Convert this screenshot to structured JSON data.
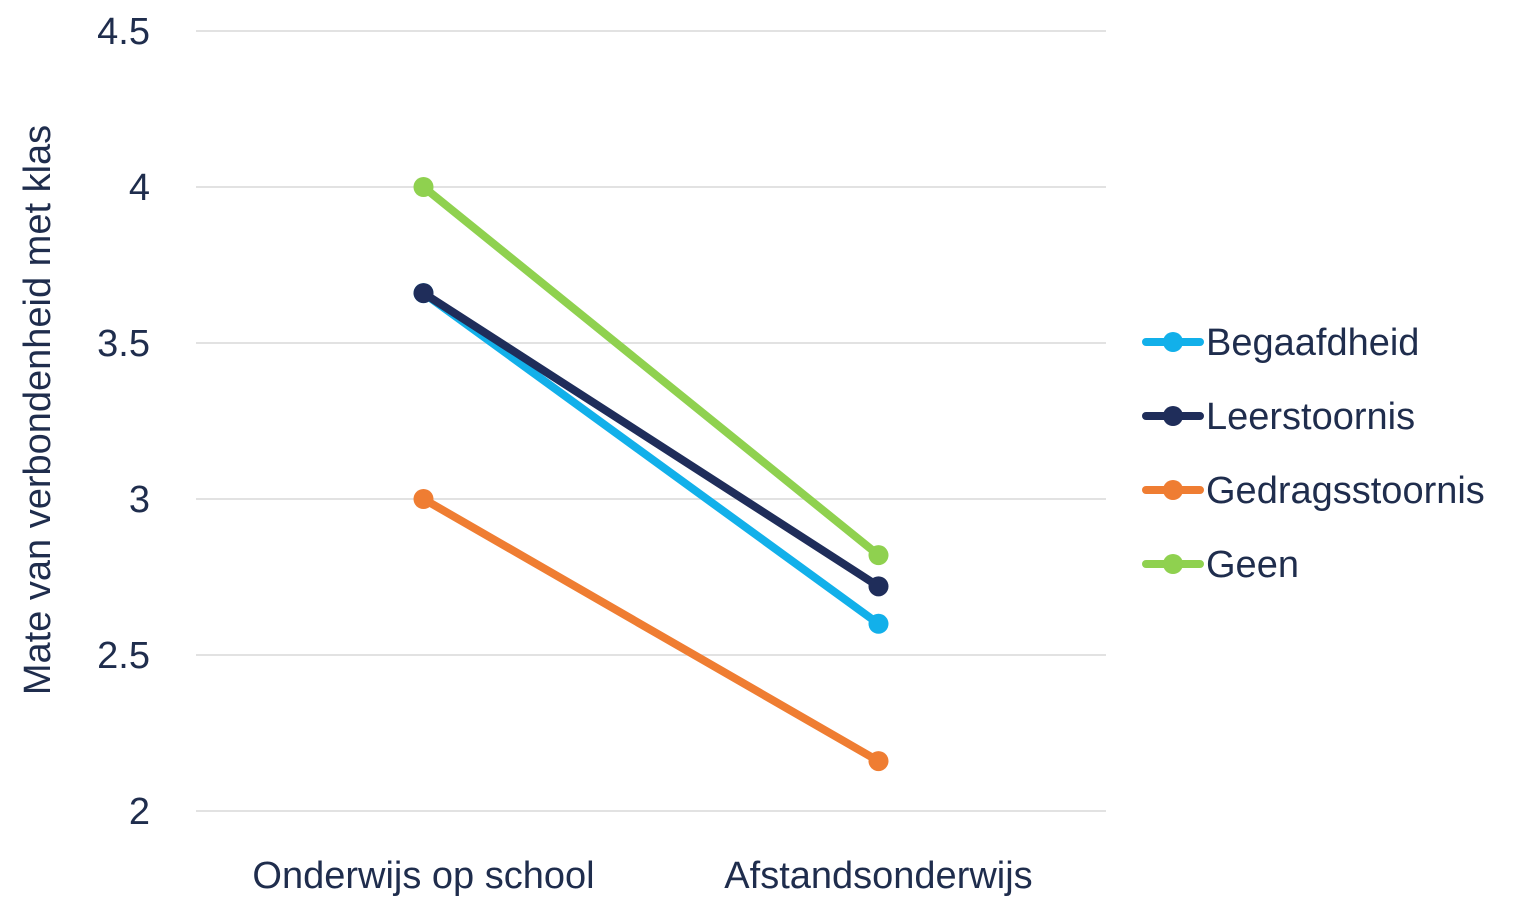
{
  "chart_data": {
    "type": "line",
    "title": "",
    "xlabel": "",
    "ylabel": "Mate van verbondenheid met klas",
    "categories": [
      "Onderwijs op school",
      "Afstandsonderwijs"
    ],
    "ylim": [
      2,
      4.5
    ],
    "yticks": [
      2,
      2.5,
      3,
      3.5,
      4,
      4.5
    ],
    "ytick_labels": [
      "2",
      "2.5",
      "3",
      "3.5",
      "4",
      "4.5"
    ],
    "grid": true,
    "legend_position": "right",
    "series": [
      {
        "name": "Begaafdheid",
        "color": "#12b0ea",
        "values": [
          3.66,
          2.6
        ]
      },
      {
        "name": "Leerstoornis",
        "color": "#1f2d5a",
        "values": [
          3.66,
          2.72
        ]
      },
      {
        "name": "Gedragsstoornis",
        "color": "#ef7d32",
        "values": [
          3.0,
          2.16
        ]
      },
      {
        "name": "Geen",
        "color": "#8fd14f",
        "values": [
          4.0,
          2.82
        ]
      }
    ]
  }
}
